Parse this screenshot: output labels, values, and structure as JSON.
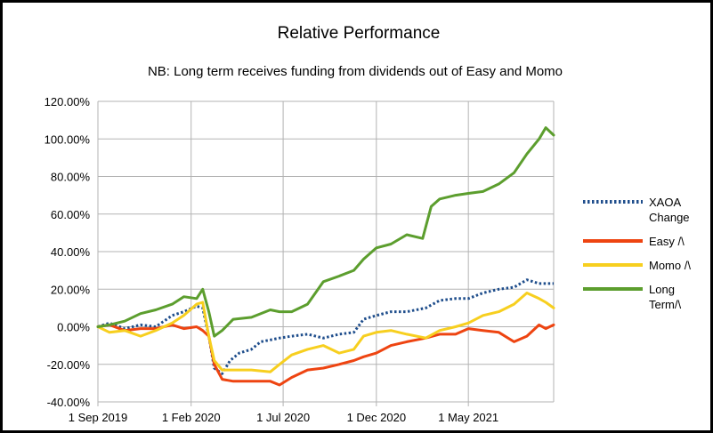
{
  "chart_data": {
    "type": "line",
    "title": "Relative Performance",
    "subtitle": "NB: Long term receives funding from dividends out of Easy and Momo",
    "ylim": [
      -0.4,
      1.2
    ],
    "y_ticks": [
      "-40.00%",
      "-20.00%",
      "0.00%",
      "20.00%",
      "40.00%",
      "60.00%",
      "80.00%",
      "100.00%",
      "120.00%"
    ],
    "xlim": [
      "2019-09-01",
      "2021-09-18"
    ],
    "x_ticks": [
      {
        "date": "2019-09-01",
        "label": "1 Sep 2019"
      },
      {
        "date": "2020-02-01",
        "label": "1 Feb 2020"
      },
      {
        "date": "2020-07-01",
        "label": "1 Jul 2020"
      },
      {
        "date": "2020-12-01",
        "label": "1 Dec 2020"
      },
      {
        "date": "2021-05-01",
        "label": "1 May 2021"
      }
    ],
    "grid": true,
    "legend_position": "right",
    "series": [
      {
        "name": "XAOA Change",
        "color": "#1f4e8c",
        "style": "dotted",
        "points": [
          [
            "2019-09-01",
            0.0
          ],
          [
            "2019-09-20",
            0.02
          ],
          [
            "2019-10-15",
            -0.01
          ],
          [
            "2019-11-10",
            0.01
          ],
          [
            "2019-12-05",
            0.0
          ],
          [
            "2020-01-01",
            0.06
          ],
          [
            "2020-01-20",
            0.08
          ],
          [
            "2020-02-10",
            0.11
          ],
          [
            "2020-02-20",
            0.1
          ],
          [
            "2020-03-01",
            -0.05
          ],
          [
            "2020-03-10",
            -0.22
          ],
          [
            "2020-03-23",
            -0.25
          ],
          [
            "2020-04-05",
            -0.18
          ],
          [
            "2020-04-20",
            -0.14
          ],
          [
            "2020-05-10",
            -0.12
          ],
          [
            "2020-05-25",
            -0.08
          ],
          [
            "2020-06-10",
            -0.07
          ],
          [
            "2020-06-25",
            -0.06
          ],
          [
            "2020-07-15",
            -0.05
          ],
          [
            "2020-08-10",
            -0.04
          ],
          [
            "2020-09-05",
            -0.06
          ],
          [
            "2020-10-01",
            -0.04
          ],
          [
            "2020-10-25",
            -0.03
          ],
          [
            "2020-11-10",
            0.04
          ],
          [
            "2020-12-01",
            0.06
          ],
          [
            "2020-12-25",
            0.08
          ],
          [
            "2021-01-20",
            0.08
          ],
          [
            "2021-02-20",
            0.1
          ],
          [
            "2021-03-15",
            0.14
          ],
          [
            "2021-04-10",
            0.15
          ],
          [
            "2021-05-01",
            0.15
          ],
          [
            "2021-05-25",
            0.18
          ],
          [
            "2021-06-20",
            0.2
          ],
          [
            "2021-07-15",
            0.21
          ],
          [
            "2021-08-05",
            0.25
          ],
          [
            "2021-08-25",
            0.23
          ],
          [
            "2021-09-18",
            0.23
          ]
        ]
      },
      {
        "name": "Easy /\\",
        "color": "#ee4411",
        "style": "solid",
        "points": [
          [
            "2019-09-01",
            0.0
          ],
          [
            "2019-09-20",
            0.01
          ],
          [
            "2019-10-15",
            -0.02
          ],
          [
            "2019-11-10",
            -0.01
          ],
          [
            "2019-12-05",
            -0.01
          ],
          [
            "2020-01-01",
            0.01
          ],
          [
            "2020-01-20",
            -0.01
          ],
          [
            "2020-02-10",
            0.0
          ],
          [
            "2020-02-20",
            -0.02
          ],
          [
            "2020-03-01",
            -0.05
          ],
          [
            "2020-03-10",
            -0.2
          ],
          [
            "2020-03-23",
            -0.28
          ],
          [
            "2020-04-10",
            -0.29
          ],
          [
            "2020-05-10",
            -0.29
          ],
          [
            "2020-06-10",
            -0.29
          ],
          [
            "2020-06-25",
            -0.31
          ],
          [
            "2020-07-15",
            -0.27
          ],
          [
            "2020-08-10",
            -0.23
          ],
          [
            "2020-09-05",
            -0.22
          ],
          [
            "2020-10-01",
            -0.2
          ],
          [
            "2020-10-25",
            -0.18
          ],
          [
            "2020-11-10",
            -0.16
          ],
          [
            "2020-12-01",
            -0.14
          ],
          [
            "2020-12-25",
            -0.1
          ],
          [
            "2021-01-20",
            -0.08
          ],
          [
            "2021-02-20",
            -0.06
          ],
          [
            "2021-03-15",
            -0.04
          ],
          [
            "2021-04-10",
            -0.04
          ],
          [
            "2021-05-01",
            -0.01
          ],
          [
            "2021-05-25",
            -0.02
          ],
          [
            "2021-06-20",
            -0.03
          ],
          [
            "2021-07-15",
            -0.08
          ],
          [
            "2021-08-05",
            -0.05
          ],
          [
            "2021-08-25",
            0.01
          ],
          [
            "2021-09-05",
            -0.01
          ],
          [
            "2021-09-18",
            0.01
          ]
        ]
      },
      {
        "name": "Momo /\\",
        "color": "#f7cf1f",
        "style": "solid",
        "points": [
          [
            "2019-09-01",
            0.0
          ],
          [
            "2019-09-20",
            -0.03
          ],
          [
            "2019-10-15",
            -0.02
          ],
          [
            "2019-11-10",
            -0.05
          ],
          [
            "2019-12-05",
            -0.02
          ],
          [
            "2020-01-01",
            0.02
          ],
          [
            "2020-01-20",
            0.06
          ],
          [
            "2020-02-10",
            0.12
          ],
          [
            "2020-02-20",
            0.13
          ],
          [
            "2020-03-01",
            -0.05
          ],
          [
            "2020-03-10",
            -0.18
          ],
          [
            "2020-03-23",
            -0.23
          ],
          [
            "2020-04-10",
            -0.23
          ],
          [
            "2020-05-10",
            -0.23
          ],
          [
            "2020-06-10",
            -0.24
          ],
          [
            "2020-06-25",
            -0.2
          ],
          [
            "2020-07-15",
            -0.15
          ],
          [
            "2020-08-10",
            -0.12
          ],
          [
            "2020-09-05",
            -0.1
          ],
          [
            "2020-10-01",
            -0.14
          ],
          [
            "2020-10-25",
            -0.12
          ],
          [
            "2020-11-10",
            -0.05
          ],
          [
            "2020-12-01",
            -0.03
          ],
          [
            "2020-12-25",
            -0.02
          ],
          [
            "2021-01-20",
            -0.04
          ],
          [
            "2021-02-20",
            -0.06
          ],
          [
            "2021-03-15",
            -0.02
          ],
          [
            "2021-04-10",
            0.0
          ],
          [
            "2021-05-01",
            0.02
          ],
          [
            "2021-05-25",
            0.06
          ],
          [
            "2021-06-20",
            0.08
          ],
          [
            "2021-07-15",
            0.12
          ],
          [
            "2021-08-05",
            0.18
          ],
          [
            "2021-08-25",
            0.15
          ],
          [
            "2021-09-05",
            0.13
          ],
          [
            "2021-09-18",
            0.1
          ]
        ]
      },
      {
        "name": "Long Term/\\",
        "color": "#5c9e2e",
        "style": "solid",
        "points": [
          [
            "2019-09-01",
            0.0
          ],
          [
            "2019-09-20",
            0.01
          ],
          [
            "2019-10-15",
            0.03
          ],
          [
            "2019-11-10",
            0.07
          ],
          [
            "2019-12-05",
            0.09
          ],
          [
            "2020-01-01",
            0.12
          ],
          [
            "2020-01-20",
            0.16
          ],
          [
            "2020-02-10",
            0.15
          ],
          [
            "2020-02-20",
            0.2
          ],
          [
            "2020-03-01",
            0.08
          ],
          [
            "2020-03-10",
            -0.05
          ],
          [
            "2020-03-23",
            -0.02
          ],
          [
            "2020-04-10",
            0.04
          ],
          [
            "2020-05-10",
            0.05
          ],
          [
            "2020-06-10",
            0.09
          ],
          [
            "2020-06-25",
            0.08
          ],
          [
            "2020-07-15",
            0.08
          ],
          [
            "2020-08-10",
            0.12
          ],
          [
            "2020-09-05",
            0.24
          ],
          [
            "2020-10-01",
            0.27
          ],
          [
            "2020-10-25",
            0.3
          ],
          [
            "2020-11-10",
            0.36
          ],
          [
            "2020-12-01",
            0.42
          ],
          [
            "2020-12-25",
            0.44
          ],
          [
            "2021-01-20",
            0.49
          ],
          [
            "2021-02-15",
            0.47
          ],
          [
            "2021-03-01",
            0.64
          ],
          [
            "2021-03-15",
            0.68
          ],
          [
            "2021-04-10",
            0.7
          ],
          [
            "2021-05-01",
            0.71
          ],
          [
            "2021-05-25",
            0.72
          ],
          [
            "2021-06-20",
            0.76
          ],
          [
            "2021-07-15",
            0.82
          ],
          [
            "2021-08-05",
            0.92
          ],
          [
            "2021-08-25",
            1.0
          ],
          [
            "2021-09-05",
            1.06
          ],
          [
            "2021-09-18",
            1.02
          ]
        ]
      }
    ],
    "legend": [
      {
        "lines": [
          "XAOA",
          "Change"
        ]
      },
      {
        "lines": [
          "Easy /\\"
        ]
      },
      {
        "lines": [
          "Momo /\\"
        ]
      },
      {
        "lines": [
          "Long",
          "Term/\\"
        ]
      }
    ]
  }
}
